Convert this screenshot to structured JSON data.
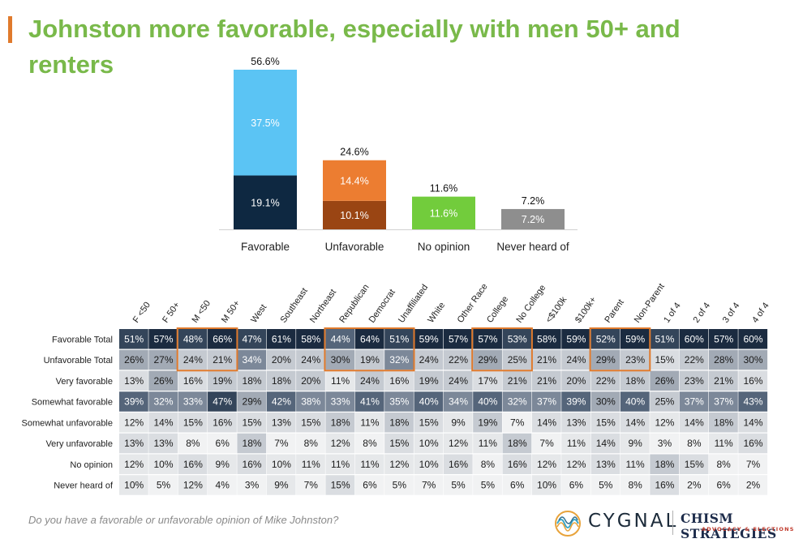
{
  "title": "Johnston more favorable, especially with men 50+ and renters",
  "footnote": "Do you have a favorable or unfavorable opinion of Mike Johnston?",
  "logos": {
    "cygnal": "CYGNAL",
    "chism_name": "CHISM STRATEGIES",
    "chism_tagline": "ADVOCACY & ELECTIONS"
  },
  "colors": {
    "title": "#79b94a",
    "accent_bar": "#e07a2c",
    "favorable_very": "#5bc4f4",
    "favorable_somewhat": "#0e2841",
    "unfavorable_very": "#ec7d31",
    "unfavorable_somewhat": "#9a4513",
    "no_opinion": "#72cc3c",
    "never_heard": "#8e8e8e",
    "highlight_box": "#e07a2c"
  },
  "chart_data": [
    {
      "type": "bar",
      "stacked": true,
      "categories": [
        "Favorable",
        "Unfavorable",
        "No opinion",
        "Never heard of"
      ],
      "totals": [
        "56.6%",
        "24.6%",
        "11.6%",
        "7.2%"
      ],
      "series": [
        {
          "values": [
            19.1,
            10.1,
            11.6,
            7.2
          ],
          "labels": [
            "19.1%",
            "10.1%",
            "11.6%",
            "7.2%"
          ]
        },
        {
          "values": [
            37.5,
            14.4,
            0,
            0
          ],
          "labels": [
            "37.5%",
            "14.4%",
            "",
            ""
          ]
        }
      ],
      "ylim": [
        0,
        56.6
      ],
      "grid": false,
      "legend": "none"
    },
    {
      "type": "heatmap",
      "columns": [
        "F <50",
        "F 50+",
        "M <50",
        "M 50+",
        "West",
        "Southeast",
        "Northeast",
        "Republican",
        "Democrat",
        "Unaffiliated",
        "White",
        "Other Race",
        "College",
        "No College",
        "<$100k",
        "$100k+",
        "Parent",
        "Non-Parent",
        "1 of 4",
        "2 of 4",
        "3 of 4",
        "4 of 4"
      ],
      "rows": [
        {
          "label": "Favorable Total",
          "values": [
            51,
            57,
            48,
            66,
            47,
            61,
            58,
            44,
            64,
            51,
            59,
            57,
            57,
            53,
            58,
            59,
            52,
            59,
            51,
            60,
            57,
            60
          ]
        },
        {
          "label": "Unfavorable Total",
          "values": [
            26,
            27,
            24,
            21,
            34,
            20,
            24,
            30,
            19,
            32,
            24,
            22,
            29,
            25,
            21,
            24,
            29,
            23,
            15,
            22,
            28,
            30
          ]
        },
        {
          "label": "Very favorable",
          "values": [
            13,
            26,
            16,
            19,
            18,
            18,
            20,
            11,
            24,
            16,
            19,
            24,
            17,
            21,
            21,
            20,
            22,
            18,
            26,
            23,
            21,
            16
          ]
        },
        {
          "label": "Somewhat favorable",
          "values": [
            39,
            32,
            33,
            47,
            29,
            42,
            38,
            33,
            41,
            35,
            40,
            34,
            40,
            32,
            37,
            39,
            30,
            40,
            25,
            37,
            37,
            43
          ]
        },
        {
          "label": "Somewhat unfavorable",
          "values": [
            12,
            14,
            15,
            16,
            15,
            13,
            15,
            18,
            11,
            18,
            15,
            9,
            19,
            7,
            14,
            13,
            15,
            14,
            12,
            14,
            18,
            14
          ]
        },
        {
          "label": "Very unfavorable",
          "values": [
            13,
            13,
            8,
            6,
            18,
            7,
            8,
            12,
            8,
            15,
            10,
            12,
            11,
            18,
            7,
            11,
            14,
            9,
            3,
            8,
            11,
            16
          ]
        },
        {
          "label": "No opinion",
          "values": [
            12,
            10,
            16,
            9,
            16,
            10,
            11,
            11,
            11,
            12,
            10,
            16,
            8,
            16,
            12,
            12,
            13,
            11,
            18,
            15,
            8,
            7
          ]
        },
        {
          "label": "Never heard of",
          "values": [
            10,
            5,
            12,
            4,
            3,
            9,
            7,
            15,
            6,
            5,
            7,
            5,
            5,
            6,
            10,
            6,
            5,
            8,
            16,
            2,
            6,
            2
          ]
        }
      ],
      "highlight_groups": [
        [
          2,
          3
        ],
        [
          7,
          8,
          9
        ],
        [
          12,
          13
        ],
        [
          16,
          17
        ]
      ],
      "highlight_rows": [
        0,
        1
      ],
      "value_suffix": "%"
    }
  ]
}
